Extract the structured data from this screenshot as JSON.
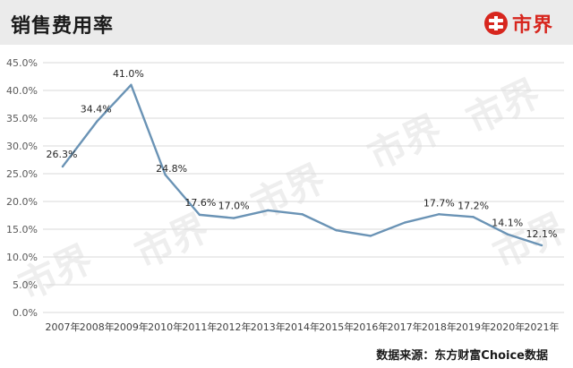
{
  "header": {
    "title": "销售费用率",
    "brand_name": "市界",
    "brand_color": "#d7261e",
    "background": "#ebebeb"
  },
  "source_note": "数据来源：东方财富Choice数据",
  "chart_data": {
    "type": "line",
    "title": "销售费用率",
    "categories": [
      "2007年",
      "2008年",
      "2009年",
      "2010年",
      "2011年",
      "2012年",
      "2013年",
      "2014年",
      "2015年",
      "2016年",
      "2017年",
      "2018年",
      "2019年",
      "2020年",
      "2021年"
    ],
    "values": [
      26.3,
      34.4,
      41.0,
      24.8,
      17.6,
      17.0,
      18.4,
      17.7,
      14.8,
      13.8,
      16.2,
      17.7,
      17.2,
      14.1,
      12.1
    ],
    "data_labels": {
      "0": "26.3%",
      "1": "34.4%",
      "2": "41.0%",
      "3": "24.8%",
      "4": "17.6%",
      "5": "17.0%",
      "11": "17.7%",
      "12": "17.2%",
      "13": "14.1%",
      "14": "12.1%"
    },
    "y_ticks": [
      "0.0%",
      "5.0%",
      "10.0%",
      "15.0%",
      "20.0%",
      "25.0%",
      "30.0%",
      "35.0%",
      "40.0%",
      "45.0%"
    ],
    "ylim": [
      0,
      45
    ],
    "line_color": "#6a93b5",
    "grid": true,
    "legend": "none"
  }
}
